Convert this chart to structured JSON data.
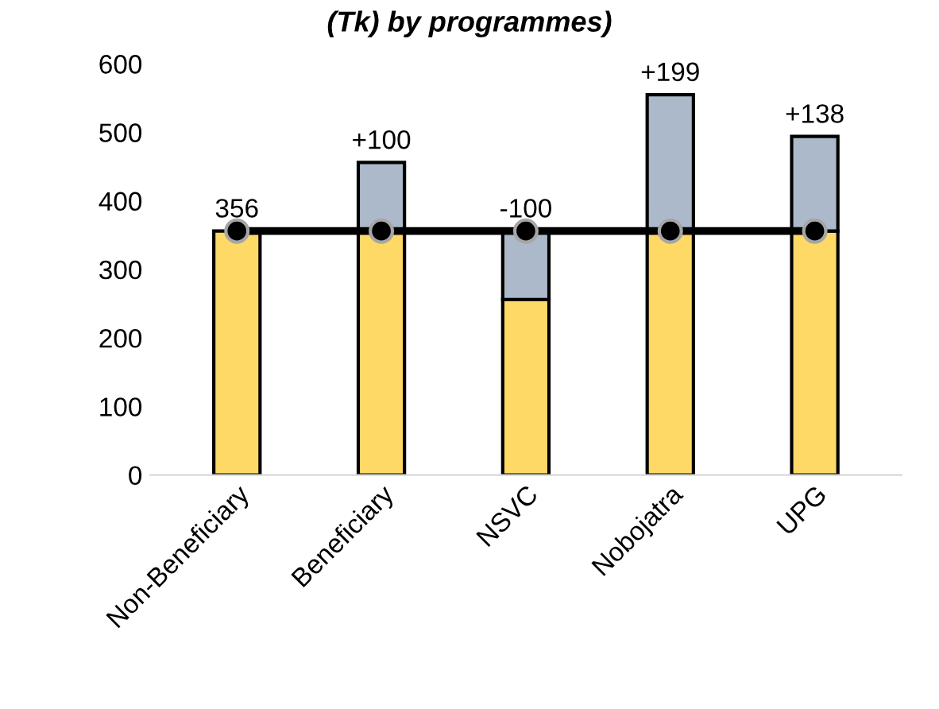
{
  "chart_data": {
    "type": "bar",
    "title": "(Tk) by programmes)",
    "stacked": true,
    "categories": [
      "Non-Beneficiary",
      "Beneficiary",
      "NSVC",
      "Nobojatra",
      "UPG"
    ],
    "series": [
      {
        "color": "#ffd966",
        "values": [
          356,
          356,
          256,
          356,
          356
        ]
      },
      {
        "color": "#acb9ca",
        "values": [
          null,
          100,
          100,
          199,
          138
        ]
      },
      {
        "type": "line",
        "color": "#000000",
        "values": [
          356,
          356,
          356,
          356,
          356
        ],
        "marker": "circle"
      }
    ],
    "annotations": [
      {
        "text": "356",
        "x": "Non-Beneficiary",
        "y": 356
      },
      {
        "text": "+100",
        "x": "Beneficiary",
        "y": 456
      },
      {
        "text": "-100",
        "x": "NSVC",
        "y": 356
      },
      {
        "text": "+199",
        "x": "Nobojatra",
        "y": 555
      },
      {
        "text": "+138",
        "x": "UPG",
        "y": 494
      }
    ],
    "ylim": [
      0,
      600
    ],
    "yticks": [
      0,
      100,
      200,
      300,
      400,
      500,
      600
    ],
    "grid": false,
    "legend": false
  }
}
